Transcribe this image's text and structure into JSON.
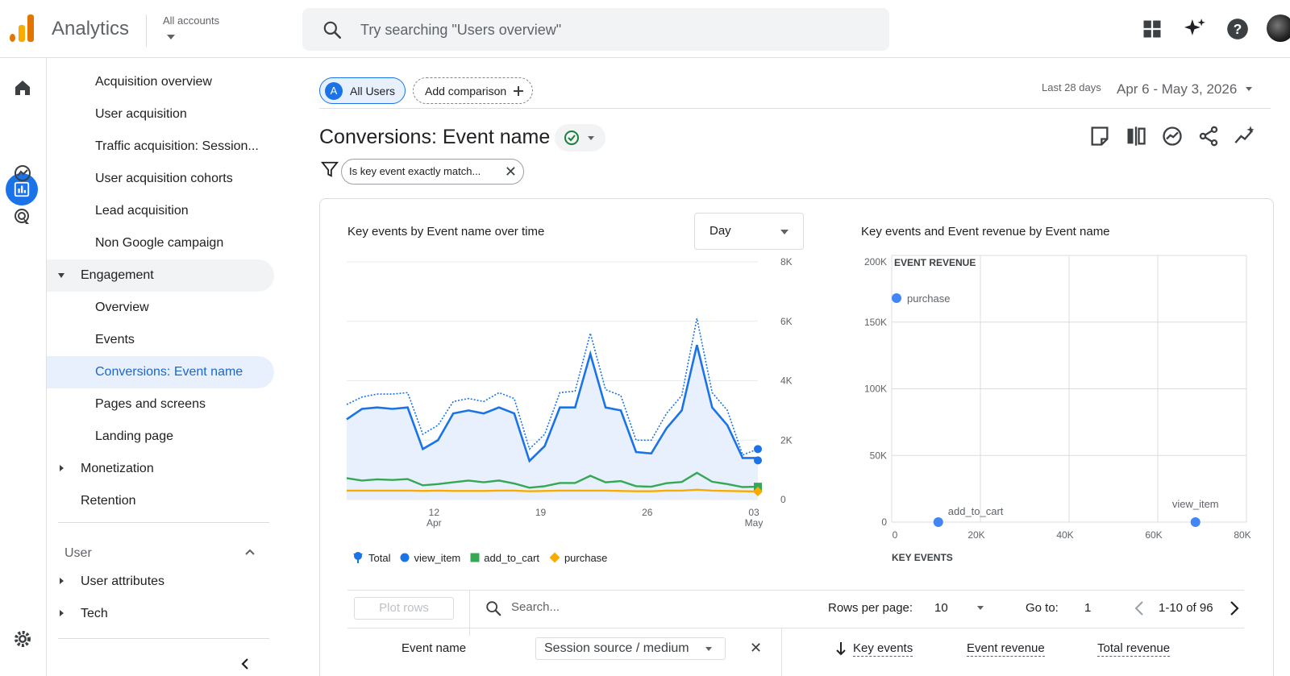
{
  "app": {
    "title": "Analytics",
    "accounts_label": "All accounts",
    "search_placeholder": "Try searching \"Users overview\""
  },
  "top_icons": [
    "apps-grid-icon",
    "sparkle-icon",
    "help-icon",
    "avatar"
  ],
  "rail": [
    "home-icon",
    "reports-icon",
    "explore-icon",
    "advertising-icon",
    "settings-icon"
  ],
  "sidebar": {
    "items": [
      {
        "label": "Acquisition overview"
      },
      {
        "label": "User acquisition"
      },
      {
        "label": "Traffic acquisition: Session..."
      },
      {
        "label": "User acquisition cohorts"
      },
      {
        "label": "Lead acquisition"
      },
      {
        "label": "Non Google campaign"
      },
      {
        "label": "Engagement"
      },
      {
        "label": "Overview"
      },
      {
        "label": "Events"
      },
      {
        "label": "Conversions: Event name"
      },
      {
        "label": "Pages and screens"
      },
      {
        "label": "Landing page"
      },
      {
        "label": "Monetization"
      },
      {
        "label": "Retention"
      }
    ],
    "user_section": "User",
    "user_items": [
      {
        "label": "User attributes"
      },
      {
        "label": "Tech"
      }
    ]
  },
  "comparison": {
    "segment_letter": "A",
    "segment_label": "All Users",
    "add_label": "Add comparison"
  },
  "date": {
    "preset": "Last 28 days",
    "range": "Apr 6 - May 3, 2026"
  },
  "page": {
    "title": "Conversions: Event name",
    "filter_label": "Is key event exactly match..."
  },
  "line_chart": {
    "title": "Key events by Event name over time",
    "granularity": "Day",
    "legend": [
      {
        "name": "Total",
        "color": "#1a73e8"
      },
      {
        "name": "view_item",
        "color": "#1a73e8"
      },
      {
        "name": "add_to_cart",
        "color": "#34a853"
      },
      {
        "name": "purchase",
        "color": "#f9ab00"
      }
    ]
  },
  "scatter_chart": {
    "title": "Key events and Event revenue by Event name"
  },
  "chart_data": [
    {
      "type": "line",
      "title": "Key events by Event name over time",
      "x_ticks": [
        "12 Apr",
        "19",
        "26",
        "03 May"
      ],
      "y_ticks": [
        "0",
        "2K",
        "4K",
        "6K",
        "8K"
      ],
      "ylim": [
        0,
        8000
      ],
      "x_day_offsets": [
        0,
        1,
        2,
        3,
        4,
        5,
        6,
        7,
        8,
        9,
        10,
        11,
        12,
        13,
        14,
        15,
        16,
        17,
        18,
        19,
        20,
        21,
        22,
        23,
        24,
        25,
        26,
        27
      ],
      "series": [
        {
          "name": "Total",
          "values": [
            3200,
            3450,
            3550,
            3550,
            3600,
            2200,
            2500,
            3300,
            3400,
            3300,
            3600,
            3400,
            1700,
            2200,
            3600,
            3650,
            5600,
            3700,
            3500,
            2000,
            2000,
            2900,
            3500,
            6100,
            3600,
            3000,
            1500,
            1700
          ]
        },
        {
          "name": "view_item",
          "values": [
            2700,
            3050,
            3100,
            3050,
            3100,
            1700,
            2000,
            2900,
            3000,
            2900,
            3100,
            2900,
            1300,
            1800,
            3100,
            3100,
            4900,
            3100,
            3000,
            1600,
            1550,
            2400,
            3000,
            5200,
            3100,
            2500,
            1400,
            1400
          ]
        },
        {
          "name": "add_to_cart",
          "values": [
            720,
            640,
            680,
            660,
            690,
            480,
            520,
            580,
            640,
            580,
            640,
            540,
            400,
            450,
            560,
            560,
            800,
            580,
            620,
            450,
            430,
            550,
            590,
            900,
            600,
            520,
            420,
            430
          ]
        },
        {
          "name": "purchase",
          "values": [
            300,
            300,
            300,
            300,
            300,
            290,
            300,
            290,
            290,
            290,
            300,
            300,
            280,
            290,
            300,
            300,
            300,
            300,
            290,
            280,
            280,
            300,
            300,
            330,
            300,
            290,
            280,
            270
          ]
        }
      ]
    },
    {
      "type": "scatter",
      "title": "Key events and Event revenue by Event name",
      "xlabel": "KEY EVENTS",
      "ylabel": "EVENT REVENUE",
      "x_ticks": [
        "0",
        "20K",
        "40K",
        "60K",
        "80K"
      ],
      "y_ticks": [
        "0",
        "50K",
        "100K",
        "150K",
        "200K"
      ],
      "xlim": [
        0,
        80000
      ],
      "ylim": [
        0,
        200000
      ],
      "points": [
        {
          "name": "purchase",
          "x": 0,
          "y": 168000
        },
        {
          "name": "add_to_cart",
          "x": 10500,
          "y": 0
        },
        {
          "name": "view_item",
          "x": 68500,
          "y": 0
        }
      ]
    }
  ],
  "table": {
    "plot_rows": "Plot rows",
    "search_placeholder": "Search...",
    "rows_per_page_label": "Rows per page:",
    "rows_per_page": "10",
    "goto_label": "Go to:",
    "goto_value": "1",
    "pagination": "1-10 of 96",
    "col_event_name": "Event name",
    "secondary_dimension": "Session source / medium",
    "col_key_events": "Key events",
    "col_event_revenue": "Event revenue",
    "col_total_revenue": "Total revenue"
  }
}
